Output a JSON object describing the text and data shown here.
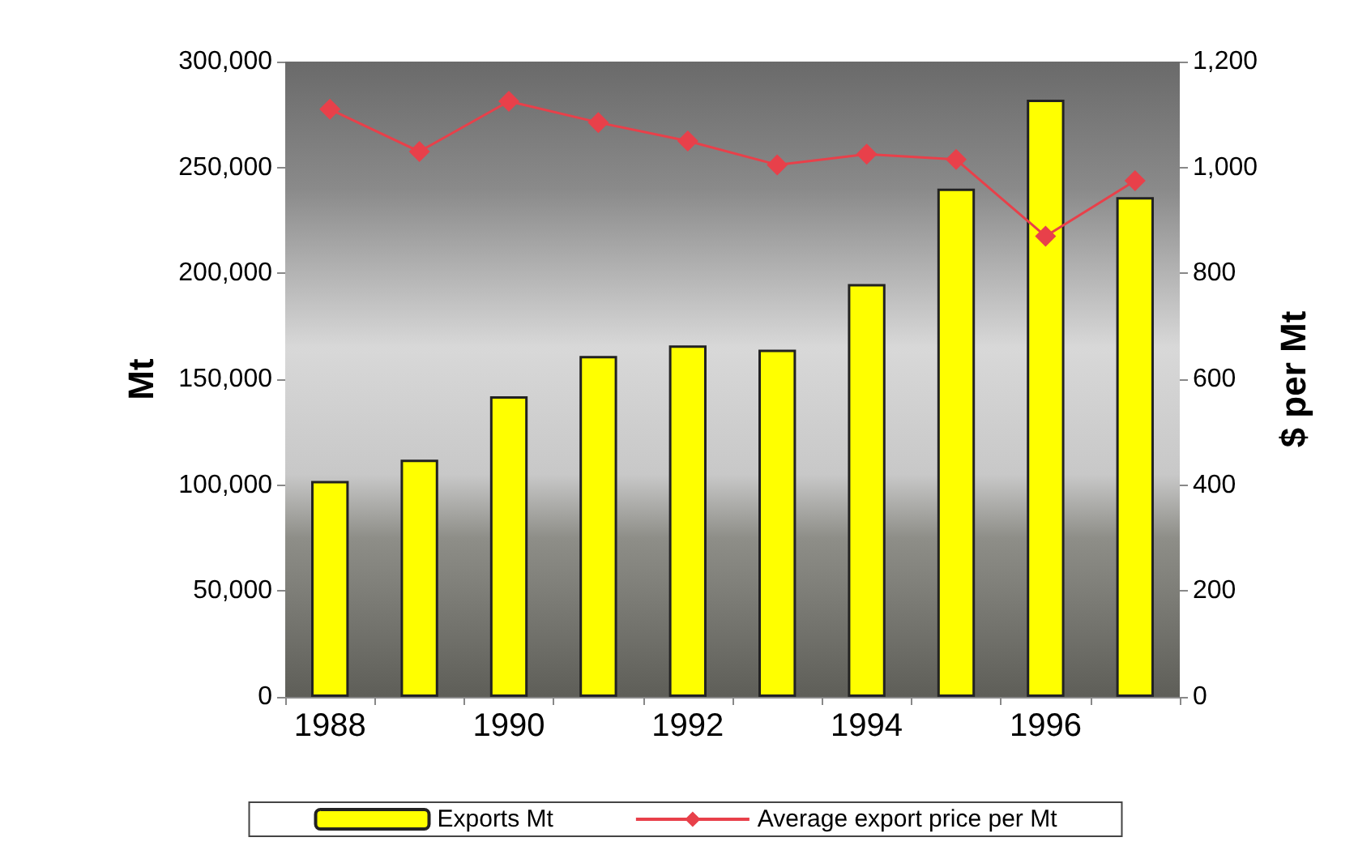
{
  "chart_data": {
    "type": "bar",
    "categories": [
      "1988",
      null,
      "1990",
      null,
      "1992",
      null,
      "1994",
      null,
      "1996",
      null
    ],
    "series": [
      {
        "name": "Exports Mt",
        "color": "#ffff00",
        "values": [
          102000,
          112000,
          142000,
          161000,
          166000,
          164000,
          195000,
          240000,
          282000,
          236000
        ]
      },
      {
        "name": "Average export price per Mt",
        "type": "line",
        "axis": "y2",
        "color": "#e8404a",
        "marker": "diamond",
        "values": [
          1110,
          1030,
          1125,
          1085,
          1050,
          1005,
          1025,
          1015,
          870,
          975
        ]
      }
    ],
    "ylabel": "Mt",
    "y2label": "$ per Mt",
    "ylim": [
      0,
      300000
    ],
    "yticks": [
      {
        "value": 0,
        "label": "0"
      },
      {
        "value": 50000,
        "label": "50,000"
      },
      {
        "value": 100000,
        "label": "100,000"
      },
      {
        "value": 150000,
        "label": "150,000"
      },
      {
        "value": 200000,
        "label": "200,000"
      },
      {
        "value": 250000,
        "label": "250,000"
      },
      {
        "value": 300000,
        "label": "300,000"
      }
    ],
    "y2lim": [
      0,
      1200
    ],
    "y2ticks": [
      {
        "value": 0,
        "label": "0"
      },
      {
        "value": 200,
        "label": "200"
      },
      {
        "value": 400,
        "label": "400"
      },
      {
        "value": 600,
        "label": "600"
      },
      {
        "value": 800,
        "label": "800"
      },
      {
        "value": 1000,
        "label": "1,000"
      },
      {
        "value": 1200,
        "label": "1,200"
      }
    ],
    "legend": "bottom",
    "grid": false
  }
}
